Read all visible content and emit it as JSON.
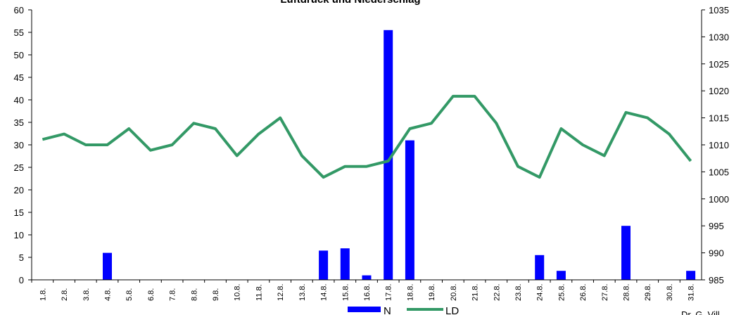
{
  "chart_data": {
    "type": "bar+line",
    "title": "Luftdruck und Niederschlag",
    "categories": [
      "1.8.",
      "2.8.",
      "3.8.",
      "4.8.",
      "5.8.",
      "6.8.",
      "7.8.",
      "8.8.",
      "9.8.",
      "10.8.",
      "11.8.",
      "12.8.",
      "13.8.",
      "14.8.",
      "15.8.",
      "16.8.",
      "17.8.",
      "18.8.",
      "19.8.",
      "20.8.",
      "21.8.",
      "22.8.",
      "23.8.",
      "24.8.",
      "25.8.",
      "26.8.",
      "27.8.",
      "28.8.",
      "29.8.",
      "30.8.",
      "31.8."
    ],
    "series": [
      {
        "name": "N",
        "type": "bar",
        "axis": "left",
        "color": "#0000FF",
        "values": [
          0,
          0,
          0,
          6,
          0,
          0,
          0,
          0,
          0,
          0,
          0,
          0,
          0,
          6.5,
          7,
          1,
          55.5,
          31,
          0,
          0,
          0,
          0,
          0,
          5.5,
          2,
          0,
          0,
          12,
          0,
          0,
          2
        ]
      },
      {
        "name": "LD",
        "type": "line",
        "axis": "right",
        "color": "#339966",
        "values": [
          1011,
          1012,
          1010,
          1010,
          1013,
          1009,
          1010,
          1014,
          1013,
          1008,
          1012,
          1015,
          1008,
          1004,
          1006,
          1006,
          1007,
          1013,
          1014,
          1019,
          1019,
          1014,
          1006,
          1004,
          1013,
          1010,
          1008,
          1016,
          1015,
          1012,
          1007
        ]
      }
    ],
    "y_left": {
      "min": 0,
      "max": 60,
      "step": 5,
      "ticks": [
        "0",
        "5",
        "10",
        "15",
        "20",
        "25",
        "30",
        "35",
        "40",
        "45",
        "50",
        "55",
        "60"
      ]
    },
    "y_right": {
      "min": 985,
      "max": 1035,
      "step": 5,
      "ticks": [
        "985",
        "990",
        "995",
        "1000",
        "1005",
        "1010",
        "1015",
        "1020",
        "1025",
        "1030",
        "1035"
      ]
    },
    "legend_position": "bottom-center",
    "grid": false
  },
  "credit": "Dr. G. Vill"
}
